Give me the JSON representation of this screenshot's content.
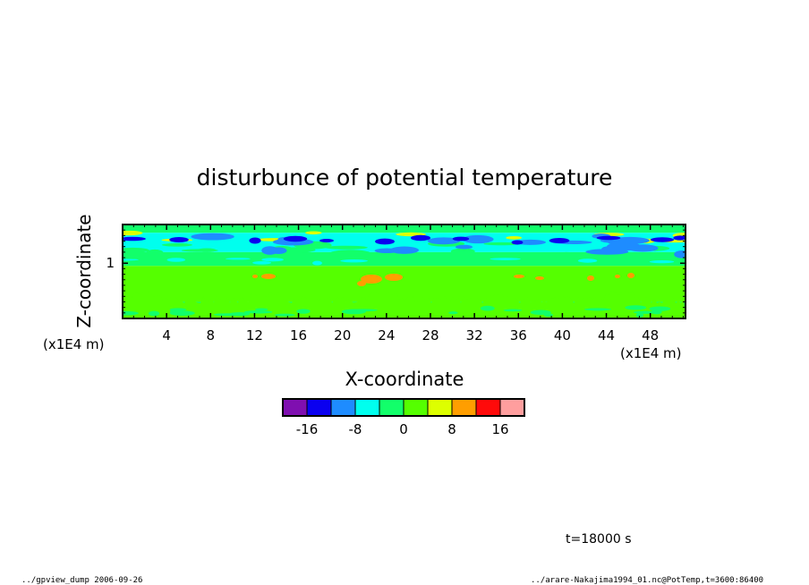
{
  "chart_data": {
    "type": "heatmap",
    "title": "disturbunce of potential temperature",
    "xlabel": "X-coordinate",
    "ylabel": "Z-coordinate",
    "x_unit": "(x1E4 m)",
    "y_unit": "(x1E4 m)",
    "xlim": [
      0,
      51.2
    ],
    "ylim": [
      0,
      1.7
    ],
    "x_ticks": [
      4,
      8,
      12,
      16,
      20,
      24,
      28,
      32,
      36,
      40,
      44,
      48
    ],
    "x_tick_labels": [
      "4",
      "8",
      "12",
      "16",
      "20",
      "24",
      "28",
      "32",
      "36",
      "40",
      "44",
      "48"
    ],
    "y_ticks": [
      1
    ],
    "y_tick_labels": [
      "1"
    ],
    "colorbar": {
      "colors": [
        "#7f0fb0",
        "#0a00f0",
        "#1e8cff",
        "#00ffee",
        "#12ff6a",
        "#55ff00",
        "#ddff00",
        "#ff9e00",
        "#ff0a0a",
        "#ff9e9e"
      ],
      "labels": [
        "-16",
        "-8",
        "0",
        "8",
        "16"
      ],
      "label_values": [
        -16,
        -8,
        0,
        8,
        16
      ],
      "bounds": [
        -20,
        -16,
        -12,
        -8,
        -4,
        0,
        4,
        8,
        12,
        16,
        20
      ]
    },
    "layers": [
      {
        "z_range": [
          1.55,
          1.7
        ],
        "value": -4,
        "note": "upper green"
      },
      {
        "z_range": [
          1.2,
          1.55
        ],
        "value": -6,
        "note": "cyan band with blue patches"
      },
      {
        "z_range": [
          0.95,
          1.2
        ],
        "value": -2,
        "note": "green band"
      },
      {
        "z_range": [
          0.3,
          0.95
        ],
        "value": 2,
        "note": "yellow band"
      },
      {
        "z_range": [
          0.0,
          0.3
        ],
        "value": -1,
        "note": "green bottom"
      }
    ],
    "grid": false,
    "legend": "bottom"
  },
  "annotations": {
    "time": "t=18000 s",
    "footer_left": "../gpview_dump  2006-09-26",
    "footer_right": "../arare-Nakajima1994_01.nc@PotTemp,t=3600:86400"
  }
}
